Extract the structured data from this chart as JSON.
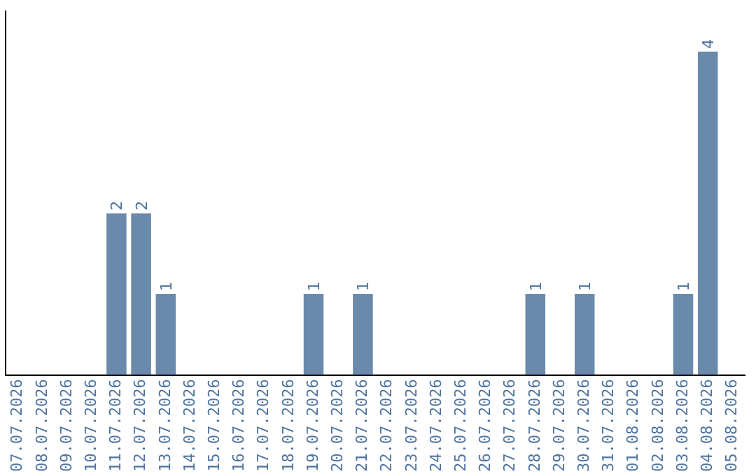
{
  "chart_data": {
    "type": "bar",
    "categories": [
      "07.07.2026",
      "08.07.2026",
      "09.07.2026",
      "10.07.2026",
      "11.07.2026",
      "12.07.2026",
      "13.07.2026",
      "14.07.2026",
      "15.07.2026",
      "16.07.2026",
      "17.07.2026",
      "18.07.2026",
      "19.07.2026",
      "20.07.2026",
      "21.07.2026",
      "22.07.2026",
      "23.07.2026",
      "24.07.2026",
      "25.07.2026",
      "26.07.2026",
      "27.07.2026",
      "28.07.2026",
      "29.07.2026",
      "30.07.2026",
      "31.07.2026",
      "01.08.2026",
      "02.08.2026",
      "03.08.2026",
      "04.08.2026",
      "05.08.2026"
    ],
    "values": [
      0,
      0,
      0,
      0,
      2,
      2,
      1,
      0,
      0,
      0,
      0,
      0,
      1,
      0,
      1,
      0,
      0,
      0,
      0,
      0,
      0,
      1,
      0,
      1,
      0,
      0,
      0,
      1,
      4,
      0
    ],
    "value_labels": [
      null,
      null,
      null,
      null,
      "2",
      "2",
      "1",
      null,
      null,
      null,
      null,
      null,
      "1",
      null,
      "1",
      null,
      null,
      null,
      null,
      null,
      null,
      "1",
      null,
      "1",
      null,
      null,
      null,
      "1",
      "4",
      null
    ],
    "color": "#6a8aab",
    "tick_labels": "x",
    "grid": false,
    "legend": false
  }
}
